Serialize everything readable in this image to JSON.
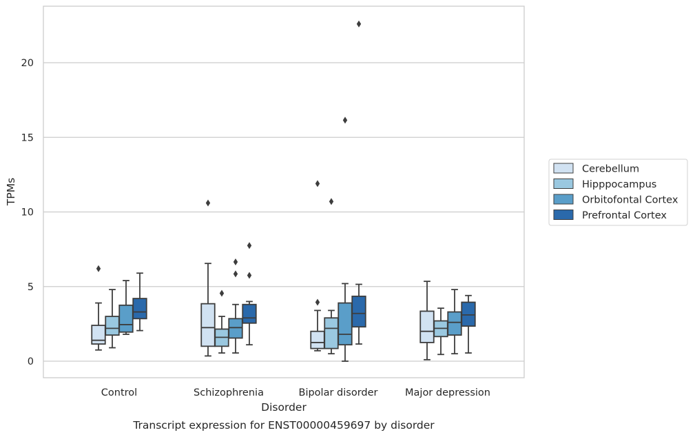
{
  "chart_data": {
    "type": "box",
    "xlabel": "Disorder",
    "ylabel": "TPMs",
    "caption": "Transcript expression for ENST00000459697 by disorder",
    "ylim": [
      -1.1,
      23.5
    ],
    "yticks": [
      0,
      5,
      10,
      15,
      20
    ],
    "grid": "horizontal",
    "legend_position": "right",
    "categories": [
      "Control",
      "Schizophrenia",
      "Bipolar disorder",
      "Major depression"
    ],
    "series": [
      {
        "name": "Cerebellum",
        "color": "#d1e2f2",
        "boxes": [
          {
            "whisker_low": 0.75,
            "q1": 1.15,
            "median": 1.4,
            "q3": 2.4,
            "whisker_high": 3.9,
            "outliers": [
              6.2
            ]
          },
          {
            "whisker_low": 0.35,
            "q1": 1.0,
            "median": 2.25,
            "q3": 3.85,
            "whisker_high": 6.55,
            "outliers": [
              10.6
            ]
          },
          {
            "whisker_low": 0.7,
            "q1": 0.85,
            "median": 1.25,
            "q3": 2.0,
            "whisker_high": 3.4,
            "outliers": [
              3.95,
              11.9
            ]
          },
          {
            "whisker_low": 0.1,
            "q1": 1.25,
            "median": 2.0,
            "q3": 3.35,
            "whisker_high": 5.35,
            "outliers": []
          }
        ]
      },
      {
        "name": "Hipppocampus",
        "color": "#9ac8e0",
        "boxes": [
          {
            "whisker_low": 0.9,
            "q1": 1.75,
            "median": 2.2,
            "q3": 3.0,
            "whisker_high": 4.8,
            "outliers": []
          },
          {
            "whisker_low": 0.55,
            "q1": 1.0,
            "median": 1.6,
            "q3": 2.15,
            "whisker_high": 3.0,
            "outliers": [
              4.55
            ]
          },
          {
            "whisker_low": 0.5,
            "q1": 0.85,
            "median": 2.2,
            "q3": 2.9,
            "whisker_high": 3.4,
            "outliers": [
              10.7
            ]
          },
          {
            "whisker_low": 0.45,
            "q1": 1.65,
            "median": 2.2,
            "q3": 2.7,
            "whisker_high": 3.55,
            "outliers": []
          }
        ]
      },
      {
        "name": "Orbitofontal Cortex",
        "color": "#5a9ec9",
        "boxes": [
          {
            "whisker_low": 1.8,
            "q1": 1.95,
            "median": 2.45,
            "q3": 3.75,
            "whisker_high": 5.4,
            "outliers": []
          },
          {
            "whisker_low": 0.55,
            "q1": 1.55,
            "median": 2.25,
            "q3": 2.85,
            "whisker_high": 3.8,
            "outliers": [
              5.85,
              6.65
            ]
          },
          {
            "whisker_low": 0.0,
            "q1": 1.1,
            "median": 1.8,
            "q3": 3.9,
            "whisker_high": 5.2,
            "outliers": [
              16.15
            ]
          },
          {
            "whisker_low": 0.5,
            "q1": 1.75,
            "median": 2.6,
            "q3": 3.3,
            "whisker_high": 4.8,
            "outliers": []
          }
        ]
      },
      {
        "name": "Prefrontal Cortex",
        "color": "#2a69ab",
        "boxes": [
          {
            "whisker_low": 2.05,
            "q1": 2.85,
            "median": 3.3,
            "q3": 4.2,
            "whisker_high": 5.9,
            "outliers": []
          },
          {
            "whisker_low": 1.1,
            "q1": 2.55,
            "median": 2.9,
            "q3": 3.8,
            "whisker_high": 4.0,
            "outliers": [
              5.75,
              7.75
            ]
          },
          {
            "whisker_low": 1.15,
            "q1": 2.3,
            "median": 3.2,
            "q3": 4.35,
            "whisker_high": 5.15,
            "outliers": [
              22.6
            ]
          },
          {
            "whisker_low": 0.55,
            "q1": 2.35,
            "median": 3.1,
            "q3": 3.95,
            "whisker_high": 4.4,
            "outliers": []
          }
        ]
      }
    ]
  }
}
